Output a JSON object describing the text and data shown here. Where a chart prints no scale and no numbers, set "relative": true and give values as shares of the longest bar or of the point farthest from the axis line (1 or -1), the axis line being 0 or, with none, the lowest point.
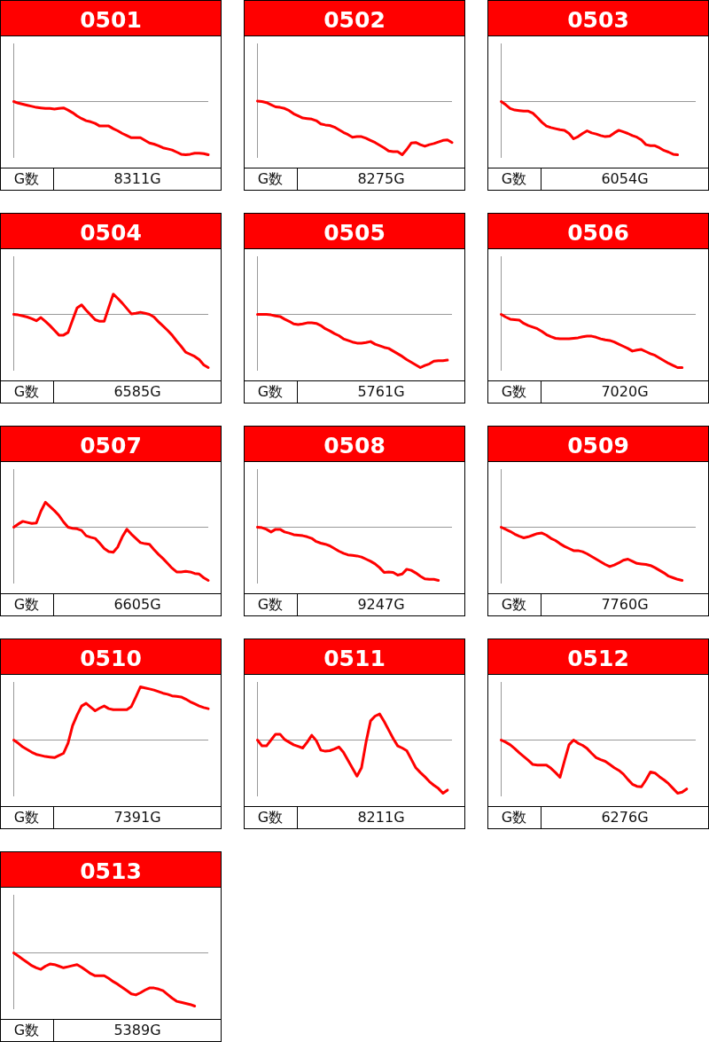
{
  "chart_data": [
    {
      "type": "line",
      "title": "0501",
      "relative": true,
      "color": "#ff0000",
      "annotations": [
        "G数",
        "8311G"
      ],
      "categories": [
        null,
        null,
        null,
        null,
        null,
        null,
        null,
        null,
        null,
        null,
        null,
        null,
        null,
        null,
        null,
        null,
        null,
        null,
        null,
        null,
        null,
        null,
        null,
        null,
        null,
        null,
        null,
        null,
        null,
        null,
        null,
        null,
        null,
        null,
        null,
        null,
        null,
        null,
        null,
        null,
        null,
        null,
        null,
        null
      ],
      "values": [
        0,
        -0.03,
        -0.05,
        -0.07,
        -0.09,
        -0.11,
        -0.12,
        -0.13,
        -0.13,
        -0.14,
        -0.13,
        -0.12,
        -0.16,
        -0.21,
        -0.27,
        -0.32,
        -0.36,
        -0.38,
        -0.41,
        -0.46,
        -0.46,
        -0.46,
        -0.51,
        -0.55,
        -0.6,
        -0.64,
        -0.68,
        -0.68,
        -0.68,
        -0.73,
        -0.78,
        -0.8,
        -0.83,
        -0.87,
        -0.89,
        -0.91,
        -0.95,
        -0.99,
        -1,
        -0.99,
        -0.97,
        -0.97,
        -0.98,
        -1
      ]
    },
    {
      "type": "line",
      "title": "0502",
      "relative": true,
      "color": "#ff0000",
      "annotations": [
        "G数",
        "8275G"
      ],
      "categories": [
        null,
        null,
        null,
        null,
        null,
        null,
        null,
        null,
        null,
        null,
        null,
        null,
        null,
        null,
        null,
        null,
        null,
        null,
        null,
        null,
        null,
        null,
        null,
        null,
        null,
        null,
        null,
        null,
        null,
        null,
        null,
        null,
        null,
        null,
        null,
        null,
        null,
        null,
        null,
        null,
        null,
        null,
        null,
        null
      ],
      "values": [
        0.01,
        0,
        -0.02,
        -0.06,
        -0.1,
        -0.11,
        -0.13,
        -0.17,
        -0.23,
        -0.27,
        -0.31,
        -0.32,
        -0.33,
        -0.36,
        -0.42,
        -0.44,
        -0.45,
        -0.48,
        -0.53,
        -0.58,
        -0.62,
        -0.67,
        -0.66,
        -0.66,
        -0.69,
        -0.73,
        -0.77,
        -0.82,
        -0.87,
        -0.93,
        -0.94,
        -0.94,
        -1,
        -0.9,
        -0.78,
        -0.77,
        -0.81,
        -0.84,
        -0.81,
        -0.79,
        -0.76,
        -0.73,
        -0.72,
        -0.77
      ]
    },
    {
      "type": "line",
      "title": "0503",
      "relative": true,
      "color": "#ff0000",
      "annotations": [
        "G数",
        "6054G"
      ],
      "categories": [
        null,
        null,
        null,
        null,
        null,
        null,
        null,
        null,
        null,
        null,
        null,
        null,
        null,
        null,
        null,
        null,
        null,
        null,
        null,
        null,
        null,
        null,
        null,
        null,
        null,
        null,
        null,
        null,
        null,
        null,
        null,
        null,
        null,
        null,
        null,
        null,
        null,
        null,
        null,
        null,
        null,
        null,
        null,
        null
      ],
      "values": [
        0,
        -0.06,
        -0.13,
        -0.16,
        -0.17,
        -0.18,
        -0.18,
        -0.22,
        -0.3,
        -0.39,
        -0.46,
        -0.49,
        -0.51,
        -0.53,
        -0.54,
        -0.6,
        -0.7,
        -0.66,
        -0.6,
        -0.55,
        -0.59,
        -0.61,
        -0.64,
        -0.66,
        -0.65,
        -0.59,
        -0.54,
        -0.57,
        -0.6,
        -0.64,
        -0.67,
        -0.72,
        -0.81,
        -0.83,
        -0.83,
        -0.87,
        -0.92,
        -0.95,
        -0.99,
        -1,
        null,
        null,
        null,
        null
      ]
    },
    {
      "type": "line",
      "title": "0504",
      "relative": true,
      "color": "#ff0000",
      "annotations": [
        "G数",
        "6585G"
      ],
      "categories": [
        null,
        null,
        null,
        null,
        null,
        null,
        null,
        null,
        null,
        null,
        null,
        null,
        null,
        null,
        null,
        null,
        null,
        null,
        null,
        null,
        null,
        null,
        null,
        null,
        null,
        null,
        null,
        null,
        null,
        null,
        null,
        null,
        null,
        null,
        null,
        null,
        null,
        null,
        null,
        null,
        null,
        null,
        null,
        null
      ],
      "values": [
        0,
        -0.01,
        -0.03,
        -0.05,
        -0.08,
        -0.12,
        -0.06,
        -0.13,
        -0.21,
        -0.3,
        -0.39,
        -0.39,
        -0.34,
        -0.11,
        0.12,
        0.18,
        0.08,
        -0.01,
        -0.1,
        -0.13,
        -0.13,
        0.13,
        0.38,
        0.3,
        0.21,
        0.11,
        0.01,
        0.02,
        0.04,
        0.02,
        0,
        -0.05,
        -0.14,
        -0.22,
        -0.3,
        -0.39,
        -0.5,
        -0.6,
        -0.71,
        -0.75,
        -0.79,
        -0.85,
        -0.95,
        -1
      ]
    },
    {
      "type": "line",
      "title": "0505",
      "relative": true,
      "color": "#ff0000",
      "annotations": [
        "G数",
        "5761G"
      ],
      "categories": [
        null,
        null,
        null,
        null,
        null,
        null,
        null,
        null,
        null,
        null,
        null,
        null,
        null,
        null,
        null,
        null,
        null,
        null,
        null,
        null,
        null,
        null,
        null,
        null,
        null,
        null,
        null,
        null,
        null,
        null,
        null,
        null,
        null,
        null,
        null,
        null,
        null,
        null,
        null,
        null,
        null,
        null,
        null,
        null
      ],
      "values": [
        0,
        0,
        0,
        -0.01,
        -0.03,
        -0.04,
        -0.09,
        -0.13,
        -0.18,
        -0.19,
        -0.18,
        -0.16,
        -0.16,
        -0.17,
        -0.21,
        -0.27,
        -0.31,
        -0.36,
        -0.4,
        -0.46,
        -0.49,
        -0.52,
        -0.54,
        -0.54,
        -0.53,
        -0.51,
        -0.56,
        -0.59,
        -0.62,
        -0.64,
        -0.69,
        -0.74,
        -0.79,
        -0.85,
        -0.9,
        -0.95,
        -1,
        -0.96,
        -0.93,
        -0.88,
        -0.87,
        -0.87,
        -0.86,
        null
      ]
    },
    {
      "type": "line",
      "title": "0506",
      "relative": true,
      "color": "#ff0000",
      "annotations": [
        "G数",
        "7020G"
      ],
      "categories": [
        null,
        null,
        null,
        null,
        null,
        null,
        null,
        null,
        null,
        null,
        null,
        null,
        null,
        null,
        null,
        null,
        null,
        null,
        null,
        null,
        null,
        null,
        null,
        null,
        null,
        null,
        null,
        null,
        null,
        null,
        null,
        null,
        null,
        null,
        null,
        null,
        null,
        null,
        null,
        null,
        null,
        null,
        null,
        null
      ],
      "values": [
        0,
        -0.05,
        -0.09,
        -0.1,
        -0.11,
        -0.17,
        -0.21,
        -0.24,
        -0.27,
        -0.32,
        -0.38,
        -0.42,
        -0.45,
        -0.46,
        -0.46,
        -0.46,
        -0.45,
        -0.44,
        -0.42,
        -0.41,
        -0.41,
        -0.43,
        -0.46,
        -0.48,
        -0.49,
        -0.52,
        -0.56,
        -0.6,
        -0.64,
        -0.69,
        -0.67,
        -0.66,
        -0.7,
        -0.74,
        -0.77,
        -0.82,
        -0.87,
        -0.92,
        -0.96,
        -1,
        -1,
        null,
        null,
        null
      ]
    },
    {
      "type": "line",
      "title": "0507",
      "relative": true,
      "color": "#ff0000",
      "annotations": [
        "G数",
        "6605G"
      ],
      "categories": [
        null,
        null,
        null,
        null,
        null,
        null,
        null,
        null,
        null,
        null,
        null,
        null,
        null,
        null,
        null,
        null,
        null,
        null,
        null,
        null,
        null,
        null,
        null,
        null,
        null,
        null,
        null,
        null,
        null,
        null,
        null,
        null,
        null,
        null,
        null,
        null,
        null,
        null,
        null,
        null,
        null,
        null,
        null,
        null
      ],
      "values": [
        0,
        0.06,
        0.11,
        0.09,
        0.07,
        0.08,
        0.3,
        0.47,
        0.39,
        0.31,
        0.22,
        0.1,
        0,
        -0.02,
        -0.03,
        -0.06,
        -0.16,
        -0.19,
        -0.21,
        -0.3,
        -0.4,
        -0.46,
        -0.47,
        -0.37,
        -0.18,
        -0.04,
        -0.13,
        -0.21,
        -0.29,
        -0.31,
        -0.32,
        -0.42,
        -0.51,
        -0.59,
        -0.68,
        -0.77,
        -0.84,
        -0.84,
        -0.83,
        -0.84,
        -0.87,
        -0.88,
        -0.95,
        -1
      ]
    },
    {
      "type": "line",
      "title": "0508",
      "relative": true,
      "color": "#ff0000",
      "annotations": [
        "G数",
        "9247G"
      ],
      "categories": [
        null,
        null,
        null,
        null,
        null,
        null,
        null,
        null,
        null,
        null,
        null,
        null,
        null,
        null,
        null,
        null,
        null,
        null,
        null,
        null,
        null,
        null,
        null,
        null,
        null,
        null,
        null,
        null,
        null,
        null,
        null,
        null,
        null,
        null,
        null,
        null,
        null,
        null,
        null,
        null,
        null,
        null,
        null,
        null
      ],
      "values": [
        0,
        -0.01,
        -0.04,
        -0.09,
        -0.04,
        -0.04,
        -0.09,
        -0.11,
        -0.14,
        -0.15,
        -0.16,
        -0.18,
        -0.21,
        -0.27,
        -0.3,
        -0.32,
        -0.35,
        -0.4,
        -0.45,
        -0.49,
        -0.52,
        -0.53,
        -0.54,
        -0.56,
        -0.6,
        -0.64,
        -0.69,
        -0.76,
        -0.85,
        -0.84,
        -0.85,
        -0.9,
        -0.88,
        -0.79,
        -0.81,
        -0.86,
        -0.92,
        -0.97,
        -0.98,
        -0.98,
        -1,
        null,
        null,
        null
      ]
    },
    {
      "type": "line",
      "title": "0509",
      "relative": true,
      "color": "#ff0000",
      "annotations": [
        "G数",
        "7760G"
      ],
      "categories": [
        null,
        null,
        null,
        null,
        null,
        null,
        null,
        null,
        null,
        null,
        null,
        null,
        null,
        null,
        null,
        null,
        null,
        null,
        null,
        null,
        null,
        null,
        null,
        null,
        null,
        null,
        null,
        null,
        null,
        null,
        null,
        null,
        null,
        null,
        null,
        null,
        null,
        null,
        null,
        null,
        null,
        null,
        null,
        null
      ],
      "values": [
        0,
        -0.04,
        -0.08,
        -0.13,
        -0.17,
        -0.2,
        -0.18,
        -0.15,
        -0.12,
        -0.11,
        -0.15,
        -0.21,
        -0.25,
        -0.31,
        -0.36,
        -0.4,
        -0.44,
        -0.44,
        -0.46,
        -0.5,
        -0.55,
        -0.6,
        -0.65,
        -0.7,
        -0.74,
        -0.71,
        -0.67,
        -0.62,
        -0.6,
        -0.64,
        -0.68,
        -0.69,
        -0.7,
        -0.72,
        -0.76,
        -0.81,
        -0.86,
        -0.92,
        -0.95,
        -0.98,
        -1,
        null,
        null,
        null
      ]
    },
    {
      "type": "line",
      "title": "0510",
      "relative": true,
      "color": "#ff0000",
      "annotations": [
        "G数",
        "7391G"
      ],
      "categories": [
        null,
        null,
        null,
        null,
        null,
        null,
        null,
        null,
        null,
        null,
        null,
        null,
        null,
        null,
        null,
        null,
        null,
        null,
        null,
        null,
        null,
        null,
        null,
        null,
        null,
        null,
        null,
        null,
        null,
        null,
        null,
        null,
        null,
        null,
        null,
        null,
        null,
        null,
        null,
        null,
        null,
        null,
        null,
        null
      ],
      "values": [
        0,
        -0.06,
        -0.13,
        -0.18,
        -0.23,
        -0.27,
        -0.29,
        -0.31,
        -0.32,
        -0.33,
        -0.29,
        -0.25,
        -0.06,
        0.27,
        0.47,
        0.64,
        0.69,
        0.62,
        0.55,
        0.6,
        0.64,
        0.59,
        0.57,
        0.57,
        0.57,
        0.57,
        0.63,
        0.81,
        1,
        0.98,
        0.96,
        0.94,
        0.91,
        0.88,
        0.86,
        0.83,
        0.82,
        0.81,
        0.77,
        0.72,
        0.68,
        0.64,
        0.61,
        0.59
      ]
    },
    {
      "type": "line",
      "title": "0511",
      "relative": true,
      "color": "#ff0000",
      "annotations": [
        "G数",
        "8211G"
      ],
      "categories": [
        null,
        null,
        null,
        null,
        null,
        null,
        null,
        null,
        null,
        null,
        null,
        null,
        null,
        null,
        null,
        null,
        null,
        null,
        null,
        null,
        null,
        null,
        null,
        null,
        null,
        null,
        null,
        null,
        null,
        null,
        null,
        null,
        null,
        null,
        null,
        null,
        null,
        null,
        null,
        null,
        null,
        null,
        null,
        null
      ],
      "values": [
        0,
        -0.11,
        -0.11,
        0,
        0.11,
        0.11,
        0.01,
        -0.04,
        -0.09,
        -0.12,
        -0.15,
        -0.04,
        0.09,
        -0.01,
        -0.19,
        -0.21,
        -0.2,
        -0.17,
        -0.13,
        -0.23,
        -0.38,
        -0.53,
        -0.68,
        -0.52,
        -0.04,
        0.36,
        0.45,
        0.49,
        0.35,
        0.19,
        0.03,
        -0.11,
        -0.15,
        -0.2,
        -0.36,
        -0.52,
        -0.61,
        -0.69,
        -0.78,
        -0.85,
        -0.91,
        -1,
        -0.94,
        null
      ]
    },
    {
      "type": "line",
      "title": "0512",
      "relative": true,
      "color": "#ff0000",
      "annotations": [
        "G数",
        "6276G"
      ],
      "categories": [
        null,
        null,
        null,
        null,
        null,
        null,
        null,
        null,
        null,
        null,
        null,
        null,
        null,
        null,
        null,
        null,
        null,
        null,
        null,
        null,
        null,
        null,
        null,
        null,
        null,
        null,
        null,
        null,
        null,
        null,
        null,
        null,
        null,
        null,
        null,
        null,
        null,
        null,
        null,
        null,
        null,
        null,
        null,
        null
      ],
      "values": [
        0,
        -0.04,
        -0.09,
        -0.16,
        -0.24,
        -0.31,
        -0.38,
        -0.46,
        -0.47,
        -0.47,
        -0.47,
        -0.53,
        -0.61,
        -0.7,
        -0.39,
        -0.09,
        0,
        -0.06,
        -0.1,
        -0.16,
        -0.25,
        -0.33,
        -0.37,
        -0.4,
        -0.46,
        -0.52,
        -0.57,
        -0.64,
        -0.74,
        -0.83,
        -0.87,
        -0.88,
        -0.75,
        -0.6,
        -0.62,
        -0.69,
        -0.75,
        -0.82,
        -0.91,
        -1,
        -0.98,
        -0.92,
        null,
        null
      ]
    },
    {
      "type": "line",
      "title": "0513",
      "relative": true,
      "color": "#ff0000",
      "annotations": [
        "G数",
        "5389G"
      ],
      "categories": [
        null,
        null,
        null,
        null,
        null,
        null,
        null,
        null,
        null,
        null,
        null,
        null,
        null,
        null,
        null,
        null,
        null,
        null,
        null,
        null,
        null,
        null,
        null,
        null,
        null,
        null,
        null,
        null,
        null,
        null,
        null,
        null,
        null,
        null,
        null,
        null,
        null,
        null,
        null,
        null,
        null,
        null,
        null,
        null
      ],
      "values": [
        0,
        -0.06,
        -0.12,
        -0.18,
        -0.24,
        -0.28,
        -0.31,
        -0.25,
        -0.21,
        -0.22,
        -0.25,
        -0.28,
        -0.26,
        -0.24,
        -0.22,
        -0.27,
        -0.33,
        -0.39,
        -0.43,
        -0.43,
        -0.43,
        -0.48,
        -0.54,
        -0.59,
        -0.65,
        -0.71,
        -0.77,
        -0.79,
        -0.75,
        -0.7,
        -0.66,
        -0.66,
        -0.68,
        -0.71,
        -0.78,
        -0.85,
        -0.91,
        -0.93,
        -0.95,
        -0.97,
        -1,
        null,
        null,
        null
      ]
    }
  ]
}
